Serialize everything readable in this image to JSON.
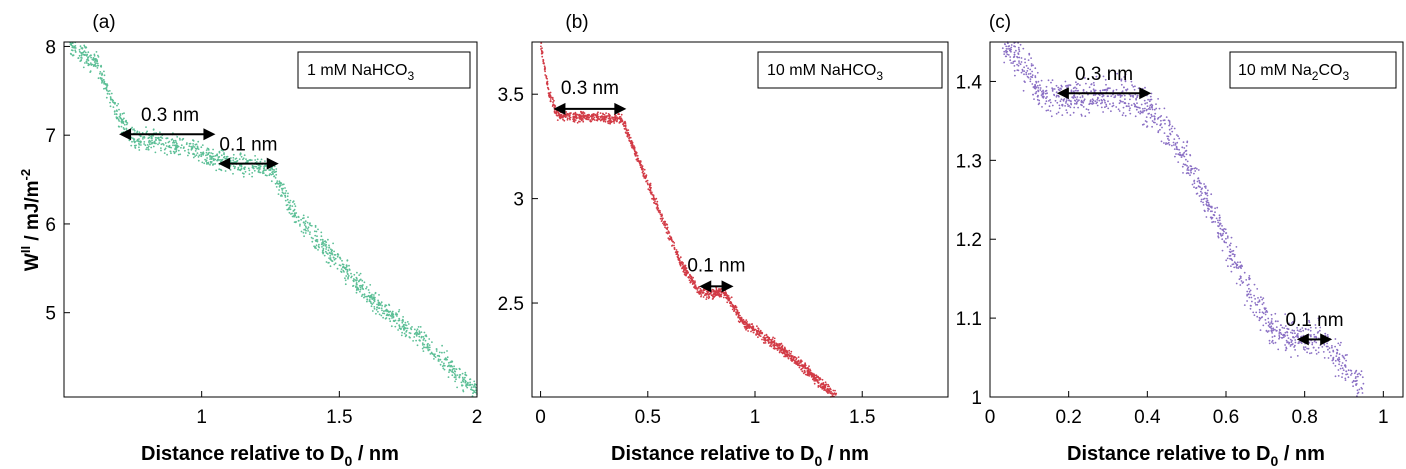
{
  "chart_data": [
    {
      "type": "scatter",
      "panel_label": "(a)",
      "legend": "1 mM NaHCO",
      "legend_sub": "3",
      "ylabel_main": "W",
      "ylabel_sup1": "II",
      "ylabel_rest": " / mJ/m",
      "ylabel_sup2": "-2",
      "xlabel_main": "Distance relative to D",
      "xlabel_sub": "0",
      "xlabel_rest": " / nm",
      "xlim": [
        0.5,
        2.0
      ],
      "ylim": [
        4.05,
        8.05
      ],
      "xticks": [
        1,
        1.5,
        2
      ],
      "xtick_labels": [
        "1",
        "1.5",
        "2"
      ],
      "yticks": [
        5,
        6,
        7,
        8
      ],
      "ytick_labels": [
        "5",
        "6",
        "7",
        "8"
      ],
      "color": "#5cbf96",
      "trend": [
        [
          0.52,
          8.02
        ],
        [
          0.62,
          7.8
        ],
        [
          0.7,
          7.2
        ],
        [
          0.75,
          6.97
        ],
        [
          0.9,
          6.9
        ],
        [
          1.05,
          6.74
        ],
        [
          1.12,
          6.68
        ],
        [
          1.25,
          6.62
        ],
        [
          1.35,
          6.05
        ],
        [
          1.5,
          5.55
        ],
        [
          1.65,
          5.05
        ],
        [
          1.8,
          4.7
        ],
        [
          1.95,
          4.25
        ],
        [
          2.0,
          4.1
        ]
      ],
      "spread": 0.06,
      "points": 1400,
      "annotations": [
        {
          "text": "0.3 nm",
          "x1": 0.7,
          "x2": 1.05,
          "y": 7.01,
          "tx": 0.885,
          "ty": 7.16
        },
        {
          "text": "0.1 nm",
          "x1": 1.06,
          "x2": 1.28,
          "y": 6.68,
          "tx": 1.17,
          "ty": 6.83
        }
      ]
    },
    {
      "type": "scatter",
      "panel_label": "(b)",
      "legend": "10 mM NaHCO",
      "legend_sub": "3",
      "xlabel_main": "Distance relative to D",
      "xlabel_sub": "0",
      "xlabel_rest": " / nm",
      "xlim": [
        -0.04,
        1.9
      ],
      "ylim": [
        2.05,
        3.75
      ],
      "xticks": [
        0,
        0.5,
        1,
        1.5
      ],
      "xtick_labels": [
        "0",
        "0.5",
        "1",
        "1.5"
      ],
      "yticks": [
        2.5,
        3,
        3.5
      ],
      "ytick_labels": [
        "2.5",
        "3",
        "3.5"
      ],
      "color": "#d23b46",
      "trend": [
        [
          0.0,
          3.74
        ],
        [
          0.04,
          3.5
        ],
        [
          0.08,
          3.4
        ],
        [
          0.38,
          3.38
        ],
        [
          0.45,
          3.2
        ],
        [
          0.55,
          2.95
        ],
        [
          0.65,
          2.7
        ],
        [
          0.74,
          2.55
        ],
        [
          0.86,
          2.55
        ],
        [
          0.95,
          2.4
        ],
        [
          1.1,
          2.3
        ],
        [
          1.25,
          2.17
        ],
        [
          1.38,
          2.05
        ]
      ],
      "spread": 0.012,
      "points": 1500,
      "annotations": [
        {
          "text": "0.3 nm",
          "x1": 0.06,
          "x2": 0.4,
          "y": 3.43,
          "tx": 0.23,
          "ty": 3.5
        },
        {
          "text": "0.1 nm",
          "x1": 0.74,
          "x2": 0.9,
          "y": 2.58,
          "tx": 0.82,
          "ty": 2.65
        }
      ]
    },
    {
      "type": "scatter",
      "panel_label": "(c)",
      "legend": "10 mM Na",
      "legend_sub": "2",
      "legend_rest": "CO",
      "legend_sub2": "3",
      "xlabel_main": "Distance relative to D",
      "xlabel_sub": "0",
      "xlabel_rest": " / nm",
      "xlim": [
        0,
        1.05
      ],
      "ylim": [
        1.0,
        1.45
      ],
      "xticks": [
        0,
        0.2,
        0.4,
        0.6,
        0.8,
        1
      ],
      "xtick_labels": [
        "0",
        "0.2",
        "0.4",
        "0.6",
        "0.8",
        "1"
      ],
      "yticks": [
        1,
        1.1,
        1.2,
        1.3,
        1.4
      ],
      "ytick_labels": [
        "1",
        "1.1",
        "1.2",
        "1.3",
        "1.4"
      ],
      "color": "#8a6fc4",
      "trend": [
        [
          0.03,
          1.45
        ],
        [
          0.1,
          1.41
        ],
        [
          0.13,
          1.38
        ],
        [
          0.16,
          1.38
        ],
        [
          0.36,
          1.38
        ],
        [
          0.42,
          1.36
        ],
        [
          0.5,
          1.3
        ],
        [
          0.58,
          1.22
        ],
        [
          0.65,
          1.14
        ],
        [
          0.72,
          1.085
        ],
        [
          0.78,
          1.075
        ],
        [
          0.86,
          1.07
        ],
        [
          0.9,
          1.04
        ],
        [
          0.95,
          1.005
        ]
      ],
      "spread": 0.011,
      "points": 1200,
      "annotations": [
        {
          "text": "0.3 nm",
          "x1": 0.17,
          "x2": 0.41,
          "y": 1.385,
          "tx": 0.29,
          "ty": 1.402
        },
        {
          "text": "0.1 nm",
          "x1": 0.78,
          "x2": 0.87,
          "y": 1.073,
          "tx": 0.825,
          "ty": 1.09
        }
      ]
    }
  ]
}
